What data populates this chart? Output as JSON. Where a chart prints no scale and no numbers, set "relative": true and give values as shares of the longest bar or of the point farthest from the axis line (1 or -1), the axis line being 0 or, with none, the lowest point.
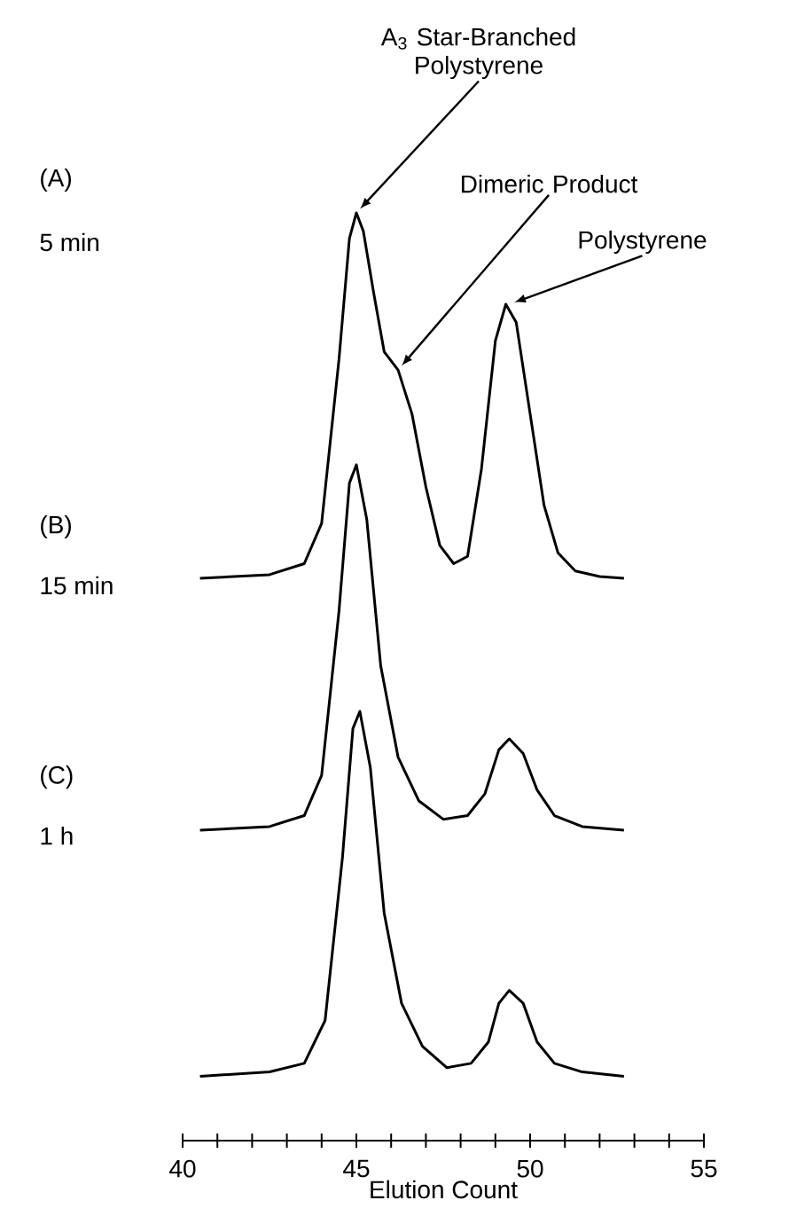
{
  "chart_data": [
    {
      "type": "line",
      "relative": true,
      "marker": "none",
      "tick_labels": false,
      "xlim": [
        40,
        55
      ],
      "x": [
        40.5,
        41.5,
        42.5,
        43.5,
        44.0,
        44.5,
        44.8,
        45.0,
        45.2,
        45.5,
        45.8,
        46.2,
        46.6,
        47.0,
        47.4,
        47.8,
        48.2,
        48.6,
        49.0,
        49.3,
        49.6,
        50.0,
        50.4,
        50.8,
        51.3,
        52.0,
        52.7
      ],
      "series": [
        {
          "color": "#000000",
          "values": [
            0,
            0.005,
            0.01,
            0.04,
            0.15,
            0.6,
            0.93,
            1,
            0.95,
            0.78,
            0.62,
            0.57,
            0.45,
            0.25,
            0.09,
            0.04,
            0.06,
            0.3,
            0.65,
            0.75,
            0.7,
            0.45,
            0.2,
            0.07,
            0.02,
            0.005,
            0
          ]
        }
      ],
      "annotations": [
        "(A)",
        "5 min",
        {
          "text": "A$_{3}$ Star-Branched Polystyrene",
          "x": 45.0,
          "y": 1
        },
        {
          "text": "Dimeric Product",
          "x": 46.2,
          "y": 0.57
        },
        {
          "text": "Polystyrene",
          "x": 49.4,
          "y": 0.75
        }
      ]
    },
    {
      "type": "line",
      "relative": true,
      "marker": "none",
      "tick_labels": false,
      "xlim": [
        40,
        55
      ],
      "x": [
        40.5,
        42.5,
        43.5,
        44.0,
        44.5,
        44.8,
        45.0,
        45.3,
        45.7,
        46.2,
        46.8,
        47.5,
        48.2,
        48.7,
        49.1,
        49.4,
        49.8,
        50.2,
        50.7,
        51.5,
        52.7
      ],
      "series": [
        {
          "color": "#000000",
          "values": [
            0,
            0.01,
            0.04,
            0.15,
            0.6,
            0.95,
            1,
            0.85,
            0.45,
            0.2,
            0.08,
            0.03,
            0.04,
            0.1,
            0.22,
            0.25,
            0.21,
            0.11,
            0.04,
            0.01,
            0
          ]
        }
      ],
      "annotations": [
        "(B)",
        "15 min"
      ]
    },
    {
      "type": "line",
      "relative": true,
      "marker": "none",
      "tick_labels": "x",
      "xlim": [
        40,
        55
      ],
      "xticks": [
        40,
        {
          "value": 41,
          "label": null
        },
        {
          "value": 42,
          "label": null
        },
        {
          "value": 43,
          "label": null
        },
        {
          "value": 44,
          "label": null
        },
        45,
        {
          "value": 46,
          "label": null
        },
        {
          "value": 47,
          "label": null
        },
        {
          "value": 48,
          "label": null
        },
        {
          "value": 49,
          "label": null
        },
        50,
        {
          "value": 51,
          "label": null
        },
        {
          "value": 52,
          "label": null
        },
        {
          "value": 53,
          "label": null
        },
        {
          "value": 54,
          "label": null
        },
        55
      ],
      "xlabel": "Elution Count",
      "x": [
        40.5,
        42.5,
        43.5,
        44.1,
        44.6,
        44.9,
        45.1,
        45.4,
        45.8,
        46.3,
        46.9,
        47.6,
        48.3,
        48.8,
        49.1,
        49.4,
        49.8,
        50.2,
        50.7,
        51.5,
        52.7
      ],
      "series": [
        {
          "color": "#000000",
          "values": [
            0.15,
            0.16,
            0.18,
            0.28,
            0.66,
            0.96,
            1,
            0.87,
            0.53,
            0.32,
            0.22,
            0.17,
            0.18,
            0.23,
            0.32,
            0.35,
            0.32,
            0.23,
            0.18,
            0.16,
            0.15
          ]
        }
      ],
      "annotations": [
        "(C)",
        "1 h"
      ]
    }
  ]
}
